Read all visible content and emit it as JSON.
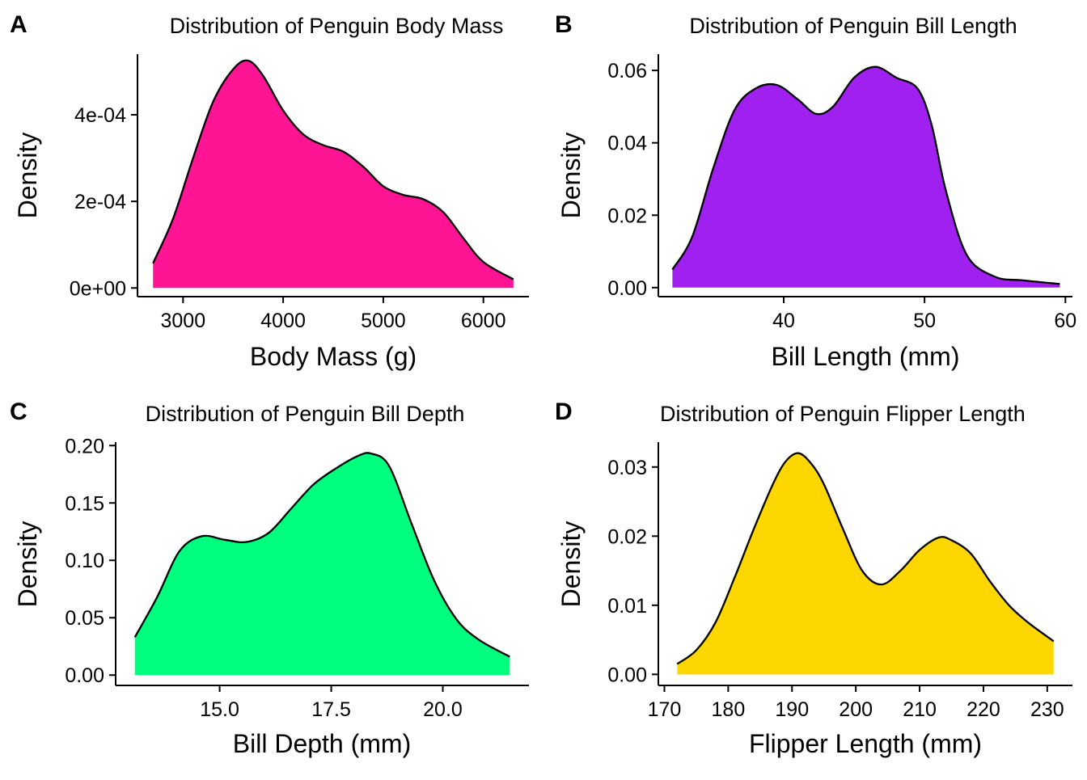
{
  "chart_data": [
    {
      "panel": "A",
      "type": "area",
      "title": "Distribution of Penguin Body Mass",
      "xlabel": "Body Mass (g)",
      "ylabel": "Density",
      "fill_color": "#FF1493",
      "xlim": [
        2545,
        6455
      ],
      "ylim": [
        -2e-05,
        0.00054
      ],
      "xticks": [
        3000,
        4000,
        5000,
        6000
      ],
      "xtick_labels": [
        "3000",
        "4000",
        "5000",
        "6000"
      ],
      "yticks": [
        0,
        0.0002,
        0.0004
      ],
      "ytick_labels": [
        "0e+00",
        "2e-04",
        "4e-04"
      ],
      "x": [
        2700,
        2900,
        3100,
        3300,
        3500,
        3650,
        3800,
        4000,
        4200,
        4400,
        4600,
        4800,
        5000,
        5200,
        5400,
        5600,
        5800,
        6000,
        6300
      ],
      "y": [
        5.7e-05,
        0.00016,
        0.0003,
        0.00043,
        0.000505,
        0.000525,
        0.00049,
        0.00041,
        0.000355,
        0.00033,
        0.000315,
        0.00028,
        0.000235,
        0.000215,
        0.000205,
        0.000175,
        0.000115,
        6e-05,
        2e-05
      ]
    },
    {
      "panel": "B",
      "type": "area",
      "title": "Distribution of Penguin Bill Length",
      "xlabel": "Bill Length (mm)",
      "ylabel": "Density",
      "fill_color": "#A020F0",
      "xlim": [
        31.1,
        60.5
      ],
      "ylim": [
        -0.0025,
        0.0645
      ],
      "xticks": [
        40,
        50,
        60
      ],
      "xtick_labels": [
        "40",
        "50",
        "60"
      ],
      "yticks": [
        0,
        0.02,
        0.04,
        0.06
      ],
      "ytick_labels": [
        "0.00",
        "0.02",
        "0.04",
        "0.06"
      ],
      "x": [
        32.1,
        33.5,
        35,
        36.5,
        38,
        39.5,
        41,
        42.3,
        43.5,
        45,
        46.5,
        48,
        49.5,
        50.5,
        51.5,
        53,
        55,
        57,
        59.6
      ],
      "y": [
        0.005,
        0.014,
        0.033,
        0.049,
        0.055,
        0.056,
        0.052,
        0.048,
        0.05,
        0.058,
        0.061,
        0.058,
        0.055,
        0.045,
        0.027,
        0.009,
        0.003,
        0.002,
        0.001
      ]
    },
    {
      "panel": "C",
      "type": "area",
      "title": "Distribution of Penguin Bill Depth",
      "xlabel": "Bill Depth (mm)",
      "ylabel": "Density",
      "fill_color": "#00FF7F",
      "xlim": [
        12.67,
        21.93
      ],
      "ylim": [
        -0.009,
        0.203
      ],
      "xticks": [
        15.0,
        17.5,
        20.0
      ],
      "xtick_labels": [
        "15.0",
        "17.5",
        "20.0"
      ],
      "yticks": [
        0,
        0.05,
        0.1,
        0.15,
        0.2
      ],
      "ytick_labels": [
        "0.00",
        "0.05",
        "0.10",
        "0.15",
        "0.20"
      ],
      "x": [
        13.1,
        13.6,
        14.1,
        14.6,
        15.1,
        15.6,
        16.1,
        16.6,
        17.1,
        17.6,
        18.1,
        18.4,
        18.8,
        19.3,
        19.8,
        20.3,
        20.8,
        21.5
      ],
      "y": [
        0.033,
        0.068,
        0.108,
        0.121,
        0.118,
        0.116,
        0.124,
        0.145,
        0.166,
        0.18,
        0.191,
        0.193,
        0.182,
        0.132,
        0.083,
        0.049,
        0.031,
        0.016
      ]
    },
    {
      "panel": "D",
      "type": "area",
      "title": "Distribution of Penguin Flipper Length",
      "xlabel": "Flipper Length (mm)",
      "ylabel": "Density",
      "fill_color": "#FFD700",
      "xlim": [
        169.05,
        233.95
      ],
      "ylim": [
        -0.0016,
        0.0336
      ],
      "xticks": [
        170,
        180,
        190,
        200,
        210,
        220,
        230
      ],
      "xtick_labels": [
        "170",
        "180",
        "190",
        "200",
        "210",
        "220",
        "230"
      ],
      "yticks": [
        0,
        0.01,
        0.02,
        0.03
      ],
      "ytick_labels": [
        "0.00",
        "0.01",
        "0.02",
        "0.03"
      ],
      "x": [
        172,
        175,
        178,
        181,
        184,
        187,
        189,
        191,
        193,
        195,
        198,
        201,
        204,
        207,
        210,
        213,
        215,
        218,
        221,
        224,
        227,
        231
      ],
      "y": [
        0.0015,
        0.0035,
        0.0075,
        0.014,
        0.021,
        0.0275,
        0.0308,
        0.032,
        0.0305,
        0.0275,
        0.021,
        0.015,
        0.013,
        0.015,
        0.018,
        0.0198,
        0.0194,
        0.0175,
        0.0135,
        0.01,
        0.0075,
        0.0048
      ]
    }
  ]
}
